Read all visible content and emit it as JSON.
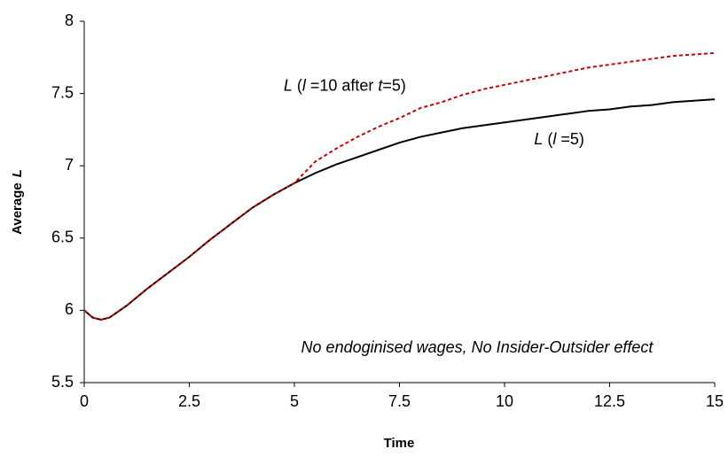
{
  "chart_data": {
    "type": "line",
    "x_label": "Time",
    "y_label": [
      {
        "text": "Average",
        "italic": false
      },
      {
        "text": "L",
        "italic": true
      }
    ],
    "annotation": "No endoginised wages, No Insider-Outsider effect",
    "x": [
      0,
      0.2,
      0.4,
      0.6,
      1,
      1.5,
      2,
      2.5,
      3,
      3.5,
      4,
      4.5,
      5,
      5.5,
      6,
      6.5,
      7,
      7.5,
      8,
      8.5,
      9,
      9.5,
      10,
      10.5,
      11,
      11.5,
      12,
      12.5,
      13,
      13.5,
      14,
      14.5,
      15
    ],
    "series": [
      {
        "name": [
          {
            "text": "L",
            "italic": true
          },
          {
            "text": " (",
            "italic": false
          },
          {
            "text": "l",
            "italic": true
          },
          {
            "text": " =5)",
            "italic": false
          }
        ],
        "color": "#000000",
        "dashed": false,
        "values": [
          6.0,
          5.95,
          5.935,
          5.95,
          6.03,
          6.15,
          6.26,
          6.37,
          6.49,
          6.6,
          6.71,
          6.8,
          6.88,
          6.95,
          7.01,
          7.06,
          7.11,
          7.16,
          7.2,
          7.23,
          7.26,
          7.28,
          7.3,
          7.32,
          7.34,
          7.36,
          7.38,
          7.39,
          7.41,
          7.42,
          7.44,
          7.45,
          7.46
        ]
      },
      {
        "name": [
          {
            "text": "L",
            "italic": true
          },
          {
            "text": " (",
            "italic": false
          },
          {
            "text": "l",
            "italic": true
          },
          {
            "text": " =10 after ",
            "italic": false
          },
          {
            "text": "t",
            "italic": true
          },
          {
            "text": "=5)",
            "italic": false
          }
        ],
        "color": "#cc0000",
        "dashed": true,
        "values": [
          6.0,
          5.95,
          5.935,
          5.95,
          6.03,
          6.15,
          6.26,
          6.37,
          6.49,
          6.6,
          6.71,
          6.8,
          6.88,
          7.03,
          7.12,
          7.2,
          7.27,
          7.33,
          7.4,
          7.44,
          7.49,
          7.53,
          7.56,
          7.59,
          7.62,
          7.65,
          7.68,
          7.7,
          7.72,
          7.74,
          7.76,
          7.77,
          7.78
        ]
      }
    ],
    "xlim": [
      0,
      15
    ],
    "xticks": [
      0,
      2.5,
      5,
      7.5,
      10,
      12.5,
      15
    ],
    "ylim": [
      5.5,
      8
    ],
    "yticks": [
      5.5,
      6,
      6.5,
      7,
      7.5,
      8
    ],
    "grid": false
  }
}
